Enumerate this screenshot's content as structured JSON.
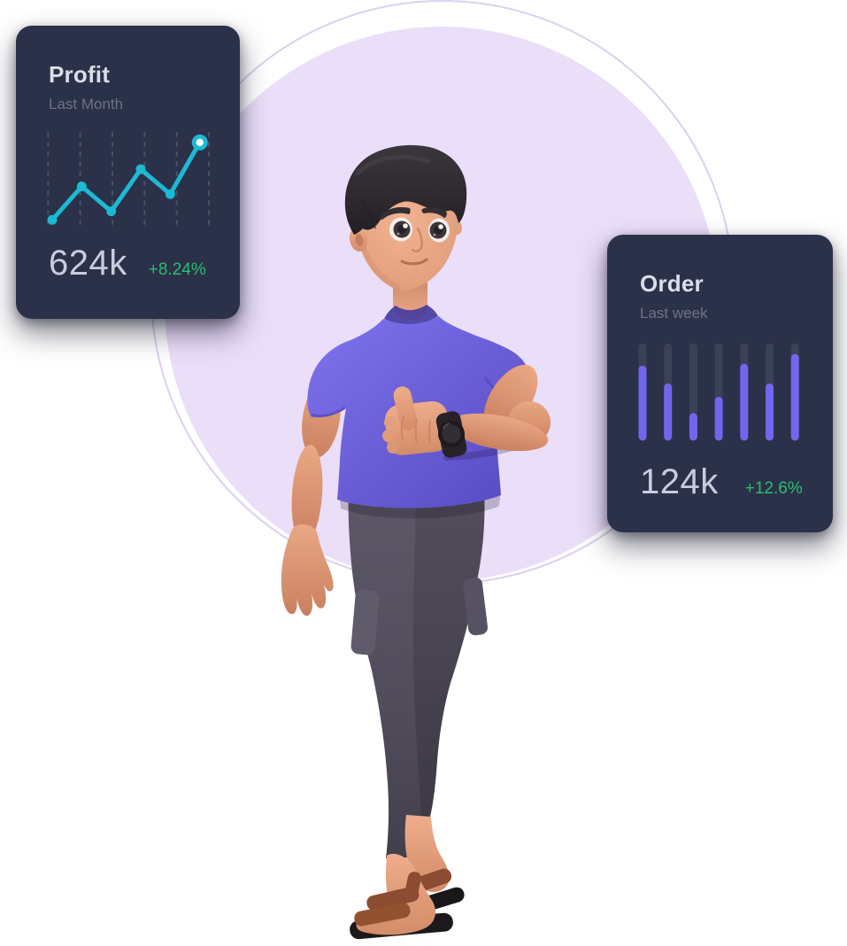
{
  "page": {
    "background": "#FFFFFF"
  },
  "decor": {
    "circle_fill": "#EBDEF9",
    "ring_stroke": "#DCD0EE"
  },
  "cards_theme": {
    "bg": "#2B3149",
    "title_color": "#DBDDE8",
    "subtitle_color": "#6C7288",
    "value_color": "#C9CCDB",
    "positive_color": "#2BBE6E"
  },
  "profit_card": {
    "title": "Profit",
    "subtitle": "Last Month",
    "value": "624k",
    "change": "+8.24%",
    "change_color": "#2BBE6E"
  },
  "order_card": {
    "title": "Order",
    "subtitle": "Last week",
    "value": "124k",
    "change": "+12.6%",
    "change_color": "#2BBE6E"
  },
  "chart_data": [
    {
      "type": "line",
      "card": "profit",
      "title": "Profit",
      "subtitle": "Last Month",
      "x": [
        1,
        2,
        3,
        4,
        5,
        6
      ],
      "values": [
        9,
        44,
        18,
        62,
        36,
        90
      ],
      "value_range": [
        0,
        100
      ],
      "line_color": "#1CB9D3",
      "dot_color": "#1CB9D3",
      "grid_color": "#4A5066",
      "grid_style": "vertical-dashed",
      "last_point_style": "white-dot-teal-ring",
      "summary_value": "624k",
      "summary_change": "+8.24%"
    },
    {
      "type": "bar",
      "card": "order",
      "title": "Order",
      "subtitle": "Last week",
      "x": [
        1,
        2,
        3,
        4,
        5,
        6,
        7
      ],
      "values": [
        75,
        55,
        22,
        40,
        77,
        55,
        88
      ],
      "value_range": [
        0,
        100
      ],
      "bar_color": "#7366EE",
      "track_color": "#3B4156",
      "track_full": 100,
      "summary_value": "124k",
      "summary_change": "+12.6%"
    }
  ],
  "illustration": {
    "name": "3d-man-thumbs-up",
    "pose": "standing, walking, right hand thumbs up, wearing wrist watch",
    "skin_color": "#E2A07E",
    "hair_color": "#2E2A2E",
    "shirt_color": "#6B5FD8",
    "pants_color": "#524D5C",
    "sandal_color": "#8C4C31",
    "watch_color": "#262127"
  }
}
